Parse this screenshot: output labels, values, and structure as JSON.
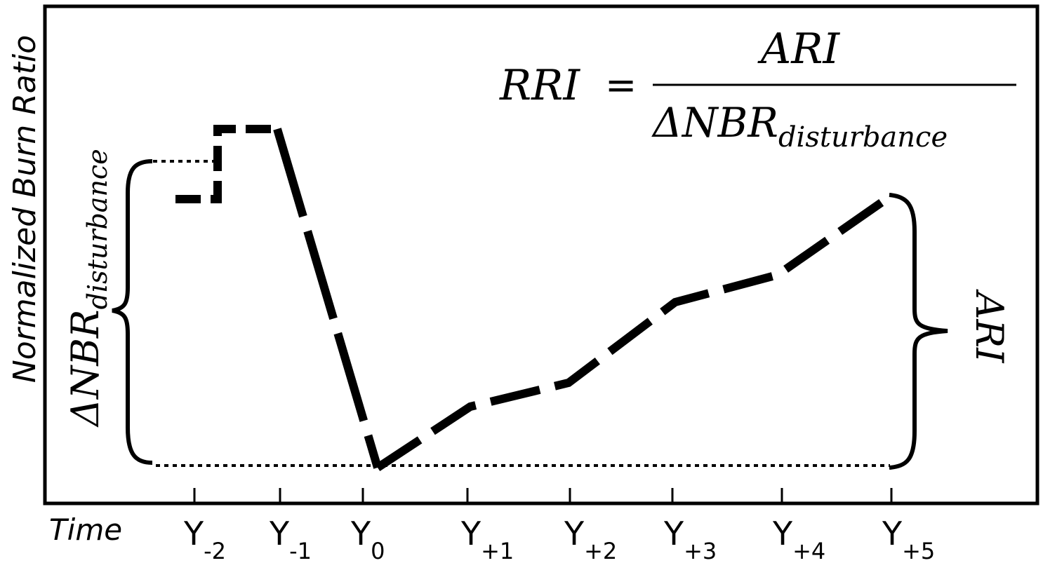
{
  "y_axis_label": "Normalized Burn Ratio",
  "x_axis_label": "Time",
  "formula": {
    "lhs": "RRI",
    "equals": "=",
    "numerator": "ARI",
    "denominator_main": "ΔNBR",
    "denominator_sub": "disturbance"
  },
  "left_brace_label": {
    "main": "ΔNBR",
    "sub": "disturbance"
  },
  "right_brace_label": "ARI",
  "time_ticks": [
    {
      "base": "Y",
      "sub": "-2"
    },
    {
      "base": "Y",
      "sub": "-1"
    },
    {
      "base": "Y",
      "sub": "0"
    },
    {
      "base": "Y",
      "sub": "+1"
    },
    {
      "base": "Y",
      "sub": "+2"
    },
    {
      "base": "Y",
      "sub": "+3"
    },
    {
      "base": "Y",
      "sub": "+4"
    },
    {
      "base": "Y",
      "sub": "+5"
    }
  ],
  "colors": {
    "ink": "#000000",
    "background": "#ffffff"
  }
}
